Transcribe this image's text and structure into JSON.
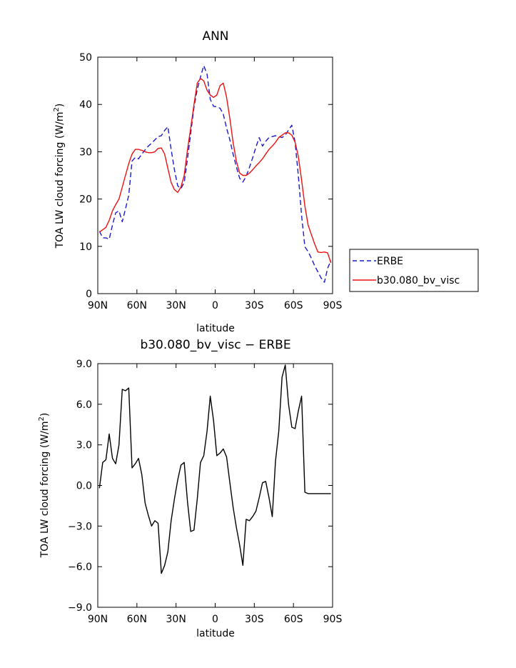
{
  "chart_data": [
    {
      "type": "line",
      "title": "ANN",
      "xlabel": "latitude",
      "ylabel": "TOA LW cloud forcing (W/m²)",
      "ylabel_main": "TOA LW cloud forcing (W/m",
      "ylabel_sup": "2",
      "ylabel_end": ")",
      "xlim": [
        -90,
        90
      ],
      "ylim": [
        0,
        50
      ],
      "yticks": [
        0,
        10,
        20,
        30,
        40,
        50
      ],
      "ytick_labels": [
        "0",
        "10",
        "20",
        "30",
        "40",
        "50"
      ],
      "xticks": [
        -90,
        -60,
        -30,
        0,
        30,
        60,
        90
      ],
      "xtick_labels": [
        "90N",
        "60N",
        "30N",
        "0",
        "30S",
        "60S",
        "90S"
      ],
      "legend": [
        "ERBE",
        "b30.080_bv_visc"
      ],
      "series": [
        {
          "name": "ERBE",
          "color": "#1a1acc",
          "dash": "dashed",
          "x": [
            -88.75,
            -86.25,
            -83.75,
            -81.25,
            -78.75,
            -76.25,
            -73.75,
            -71.25,
            -68.75,
            -66.25,
            -63.75,
            -61.25,
            -58.75,
            -56.25,
            -53.75,
            -51.25,
            -48.75,
            -46.25,
            -43.75,
            -41.25,
            -38.75,
            -36.25,
            -33.75,
            -31.25,
            -28.75,
            -26.25,
            -23.75,
            -21.25,
            -18.75,
            -16.25,
            -13.75,
            -11.25,
            -8.75,
            -6.25,
            -3.75,
            -1.25,
            1.25,
            3.75,
            6.25,
            8.75,
            11.25,
            13.75,
            16.25,
            18.75,
            21.25,
            23.75,
            26.25,
            28.75,
            31.25,
            33.75,
            36.25,
            38.75,
            41.25,
            43.75,
            46.25,
            48.75,
            51.25,
            53.75,
            56.25,
            58.75,
            61.25,
            63.75,
            66.25,
            68.75,
            71.25,
            73.75,
            76.25,
            78.75,
            81.25,
            83.75,
            86.25,
            88.75
          ],
          "values": [
            13.2,
            11.8,
            11.8,
            11.5,
            14.5,
            17.1,
            17.5,
            15.2,
            17.9,
            20.8,
            28.0,
            28.8,
            28.5,
            29.5,
            30.4,
            31.2,
            31.8,
            32.5,
            33.2,
            33.4,
            34.5,
            35.3,
            30.5,
            26.2,
            22.8,
            22.2,
            23.5,
            28.5,
            33.9,
            39.4,
            43.2,
            45.8,
            48.2,
            46.4,
            41.1,
            39.6,
            39.5,
            39.2,
            37.9,
            35.0,
            32.5,
            29.5,
            26.8,
            24.4,
            23.6,
            24.8,
            26.7,
            28.7,
            31.0,
            33.0,
            31.2,
            32.2,
            33.0,
            33.2,
            33.4,
            33.2,
            33.0,
            33.5,
            34.6,
            35.6,
            32.0,
            25.0,
            16.5,
            9.9,
            8.9,
            7.5,
            5.9,
            4.6,
            3.3,
            2.4,
            5.4,
            7.0
          ]
        },
        {
          "name": "b30.080_bv_visc",
          "color": "#ee1111",
          "dash": "solid",
          "x": [
            -88.75,
            -86.25,
            -83.75,
            -81.25,
            -78.75,
            -76.25,
            -73.75,
            -71.25,
            -68.75,
            -66.25,
            -63.75,
            -61.25,
            -58.75,
            -56.25,
            -53.75,
            -51.25,
            -48.75,
            -46.25,
            -43.75,
            -41.25,
            -38.75,
            -36.25,
            -33.75,
            -31.25,
            -28.75,
            -26.25,
            -23.75,
            -21.25,
            -18.75,
            -16.25,
            -13.75,
            -11.25,
            -8.75,
            -6.25,
            -3.75,
            -1.25,
            1.25,
            3.75,
            6.25,
            8.75,
            11.25,
            13.75,
            16.25,
            18.75,
            21.25,
            23.75,
            26.25,
            28.75,
            31.25,
            33.75,
            36.25,
            38.75,
            41.25,
            43.75,
            46.25,
            48.75,
            51.25,
            53.75,
            56.25,
            58.75,
            61.25,
            63.75,
            66.25,
            68.75,
            71.25,
            73.75,
            76.25,
            78.75,
            81.25,
            83.75,
            86.25,
            88.75
          ],
          "values": [
            13.0,
            13.5,
            14.0,
            15.5,
            17.5,
            18.8,
            20.0,
            22.5,
            25.0,
            27.5,
            29.5,
            30.5,
            30.5,
            30.3,
            30.0,
            29.8,
            29.8,
            30.0,
            30.7,
            30.8,
            29.5,
            26.5,
            23.5,
            22.0,
            21.4,
            22.5,
            25.0,
            30.5,
            35.0,
            40.0,
            44.5,
            45.5,
            45.0,
            43.0,
            42.0,
            41.5,
            42.0,
            44.0,
            44.5,
            41.5,
            37.0,
            32.0,
            28.0,
            25.5,
            25.0,
            25.0,
            25.5,
            26.2,
            27.0,
            27.7,
            28.5,
            29.5,
            30.5,
            31.2,
            32.0,
            33.0,
            33.5,
            34.0,
            34.0,
            33.5,
            32.0,
            29.0,
            24.0,
            18.5,
            14.5,
            12.5,
            10.5,
            8.8,
            8.7,
            8.8,
            8.6,
            6.5
          ]
        }
      ]
    },
    {
      "type": "line",
      "title": "b30.080_bv_visc − ERBE",
      "xlabel": "latitude",
      "ylabel": "TOA LW cloud forcing (W/m²)",
      "ylabel_main": "TOA LW cloud forcing (W/m",
      "ylabel_sup": "2",
      "ylabel_end": ")",
      "xlim": [
        -90,
        90
      ],
      "ylim": [
        -9,
        9
      ],
      "yticks": [
        -9,
        -6,
        -3,
        0,
        3,
        6,
        9
      ],
      "ytick_labels": [
        "−9.0",
        "−6.0",
        "−3.0",
        "0.0",
        "3.0",
        "6.0",
        "9.0"
      ],
      "xticks": [
        -90,
        -60,
        -30,
        0,
        30,
        60,
        90
      ],
      "xtick_labels": [
        "90N",
        "60N",
        "30N",
        "0",
        "30S",
        "60S",
        "90S"
      ],
      "series": [
        {
          "name": "b30.080_bv_visc − ERBE",
          "color": "#000000",
          "dash": "solid",
          "x": [
            -88.75,
            -86.25,
            -83.75,
            -81.25,
            -78.75,
            -76.25,
            -73.75,
            -71.25,
            -68.75,
            -66.25,
            -63.75,
            -61.25,
            -58.75,
            -56.25,
            -53.75,
            -51.25,
            -48.75,
            -46.25,
            -43.75,
            -41.25,
            -38.75,
            -36.25,
            -33.75,
            -31.25,
            -28.75,
            -26.25,
            -23.75,
            -21.25,
            -18.75,
            -16.25,
            -13.75,
            -11.25,
            -8.75,
            -6.25,
            -3.75,
            -1.25,
            1.25,
            3.75,
            6.25,
            8.75,
            11.25,
            13.75,
            16.25,
            18.75,
            21.25,
            23.75,
            26.25,
            28.75,
            31.25,
            33.75,
            36.25,
            38.75,
            41.25,
            43.75,
            46.25,
            48.75,
            51.25,
            53.75,
            56.25,
            58.75,
            61.25,
            63.75,
            66.25,
            68.75,
            71.25,
            73.75,
            76.25,
            78.75,
            81.25,
            83.75,
            86.25,
            88.75
          ],
          "values": [
            -0.2,
            1.7,
            1.9,
            3.8,
            2.0,
            1.6,
            3.0,
            7.1,
            7.0,
            7.2,
            1.3,
            1.6,
            2.0,
            0.8,
            -1.3,
            -2.2,
            -3.0,
            -2.6,
            -2.8,
            -6.5,
            -5.9,
            -4.9,
            -2.6,
            -1.0,
            0.4,
            1.5,
            1.7,
            -1.2,
            -3.4,
            -3.3,
            -1.0,
            1.7,
            2.2,
            4.0,
            6.6,
            4.8,
            2.2,
            2.4,
            2.7,
            2.1,
            0.2,
            -1.6,
            -3.1,
            -4.4,
            -5.9,
            -2.5,
            -2.6,
            -2.3,
            -1.9,
            -0.9,
            0.2,
            0.3,
            -0.9,
            -2.3,
            1.8,
            4.0,
            8.0,
            8.9,
            6.0,
            4.3,
            4.2,
            5.5,
            6.6,
            -0.5,
            -0.6,
            -0.6,
            -0.6,
            -0.6,
            -0.6,
            -0.6,
            -0.6,
            -0.6
          ]
        }
      ]
    }
  ]
}
